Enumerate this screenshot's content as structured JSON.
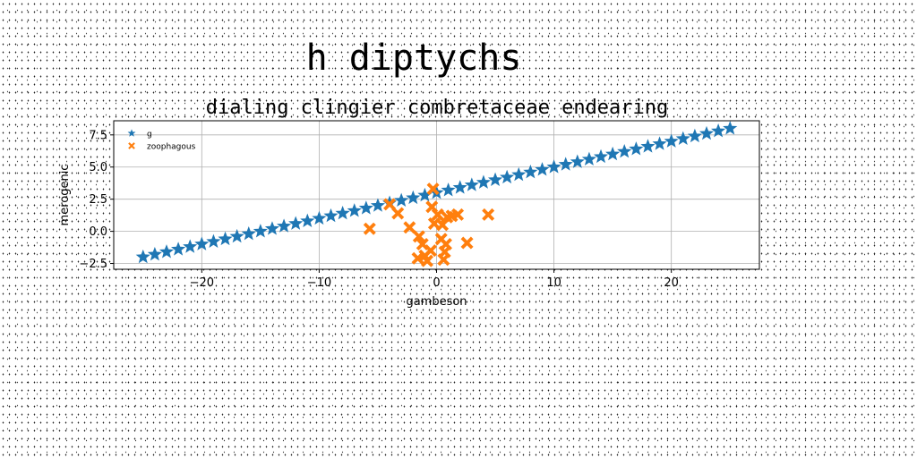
{
  "chart_data": {
    "type": "scatter",
    "suptitle": "h diptychs",
    "title": "dialing clingier combretaceae endearing",
    "xlabel": "gambeson",
    "ylabel": "merogenic",
    "xlim": [
      -27.5,
      27.5
    ],
    "ylim": [
      -2.95,
      8.6
    ],
    "xticks": [
      -20,
      -10,
      0,
      10,
      20
    ],
    "xtick_labels": [
      "−20",
      "−10",
      "0",
      "10",
      "20"
    ],
    "yticks": [
      -2.5,
      0.0,
      2.5,
      5.0,
      7.5
    ],
    "ytick_labels": [
      "−2.5",
      "0.0",
      "2.5",
      "5.0",
      "7.5"
    ],
    "grid": true,
    "legend_position": "top-left",
    "series": [
      {
        "name": "g",
        "marker": "star",
        "color": "#1f77b4",
        "x": [
          -25.0,
          -24.0,
          -23.0,
          -22.0,
          -21.0,
          -20.0,
          -19.0,
          -18.0,
          -17.0,
          -16.0,
          -15.0,
          -14.0,
          -13.0,
          -12.0,
          -11.0,
          -10.0,
          -9.0,
          -8.0,
          -7.0,
          -6.0,
          -5.0,
          -4.0,
          -3.0,
          -2.0,
          -1.0,
          0.0,
          1.0,
          2.0,
          3.0,
          4.0,
          5.0,
          6.0,
          7.0,
          8.0,
          9.0,
          10.0,
          11.0,
          12.0,
          13.0,
          14.0,
          15.0,
          16.0,
          17.0,
          18.0,
          19.0,
          20.0,
          21.0,
          22.0,
          23.0,
          24.0,
          25.0
        ],
        "y": [
          -2.0,
          -1.8,
          -1.6,
          -1.4,
          -1.2,
          -1.0,
          -0.8,
          -0.6,
          -0.4,
          -0.2,
          0.0,
          0.2,
          0.4,
          0.6,
          0.8,
          1.0,
          1.2,
          1.4,
          1.6,
          1.8,
          2.0,
          2.2,
          2.4,
          2.6,
          2.8,
          3.0,
          3.2,
          3.4,
          3.6,
          3.8,
          4.0,
          4.2,
          4.4,
          4.6,
          4.8,
          5.0,
          5.2,
          5.4,
          5.6,
          5.8,
          6.0,
          6.2,
          6.4,
          6.6,
          6.8,
          7.0,
          7.2,
          7.4,
          7.6,
          7.8,
          8.0
        ]
      },
      {
        "name": "zoophagous",
        "marker": "x-filled",
        "color": "#ff7f0e",
        "x": [
          -4.0,
          -3.3,
          -5.7,
          -2.3,
          -1.5,
          -1.2,
          -0.5,
          -0.4,
          -0.2,
          0.1,
          0.5,
          0.9,
          1.3,
          1.8,
          0.4,
          2.6,
          0.8,
          0.7,
          -1.0,
          -1.6,
          -0.8,
          0.6,
          4.4,
          -0.3
        ],
        "y": [
          2.1,
          1.4,
          0.2,
          0.3,
          -0.4,
          -1.0,
          -1.5,
          1.9,
          0.6,
          1.3,
          0.5,
          1.1,
          1.2,
          1.3,
          -0.6,
          -0.9,
          -1.0,
          -1.6,
          -1.9,
          -2.1,
          -2.3,
          -2.2,
          1.3,
          3.3
        ]
      }
    ]
  }
}
